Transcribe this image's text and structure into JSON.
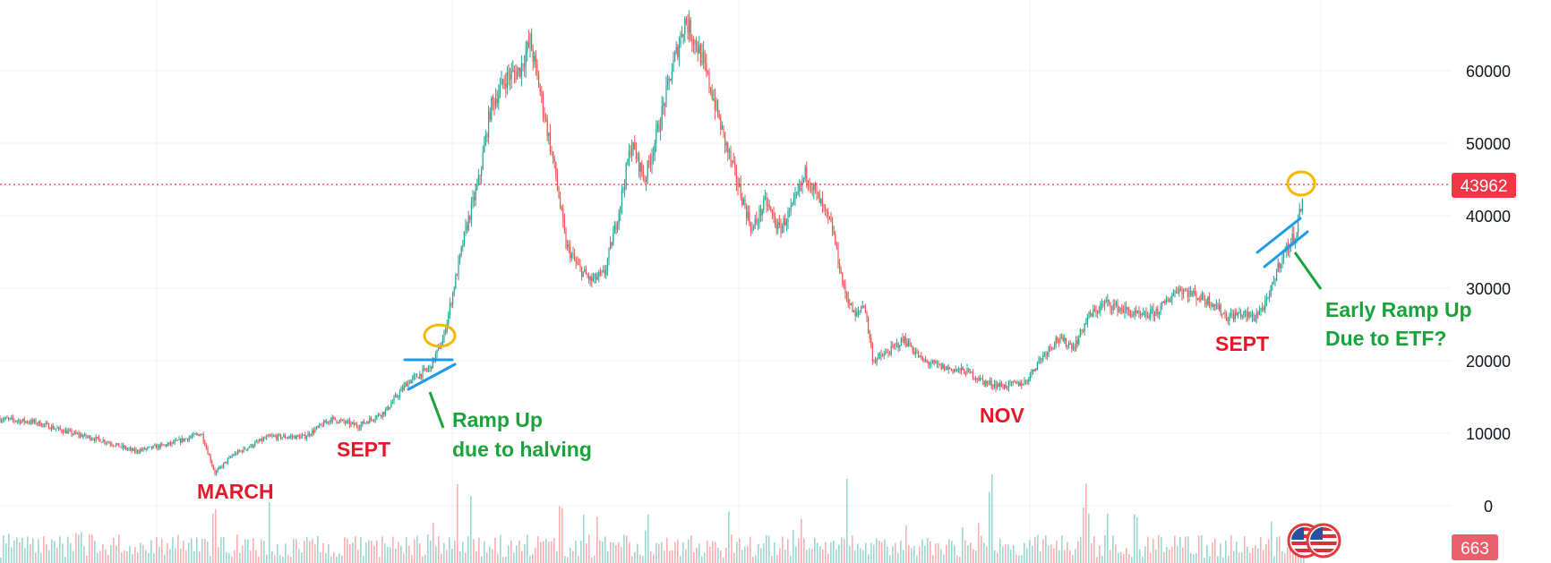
{
  "chart_data": {
    "type": "candlestick",
    "title": "",
    "xlabel": "",
    "ylabel": "",
    "ylim": [
      -6000,
      69000
    ],
    "grid": true,
    "price_axis_ticks": [
      0,
      10000,
      20000,
      30000,
      40000,
      50000,
      60000
    ],
    "price_axis_tick_labels": [
      "0",
      "10000",
      "20000",
      "30000",
      "40000",
      "50000",
      "60000"
    ],
    "current_price": 43962,
    "current_price_label": "43962",
    "current_volume_label": "663",
    "price_path": [
      [
        0,
        12000
      ],
      [
        40,
        11500
      ],
      [
        80,
        10000
      ],
      [
        115,
        9000
      ],
      [
        150,
        7500
      ],
      [
        190,
        8500
      ],
      [
        225,
        10000
      ],
      [
        240,
        4500
      ],
      [
        260,
        7000
      ],
      [
        300,
        9500
      ],
      [
        340,
        9500
      ],
      [
        370,
        12000
      ],
      [
        400,
        11000
      ],
      [
        430,
        13000
      ],
      [
        455,
        17000
      ],
      [
        480,
        19000
      ],
      [
        495,
        23000
      ],
      [
        510,
        32000
      ],
      [
        520,
        38000
      ],
      [
        535,
        45000
      ],
      [
        548,
        55000
      ],
      [
        565,
        59000
      ],
      [
        580,
        60000
      ],
      [
        592,
        64000
      ],
      [
        605,
        56000
      ],
      [
        620,
        46000
      ],
      [
        632,
        36000
      ],
      [
        645,
        33000
      ],
      [
        660,
        31000
      ],
      [
        675,
        32000
      ],
      [
        690,
        40000
      ],
      [
        705,
        50000
      ],
      [
        720,
        45000
      ],
      [
        735,
        52000
      ],
      [
        750,
        60000
      ],
      [
        765,
        67000
      ],
      [
        780,
        63000
      ],
      [
        795,
        57000
      ],
      [
        810,
        50000
      ],
      [
        825,
        44000
      ],
      [
        840,
        38000
      ],
      [
        855,
        42000
      ],
      [
        870,
        38000
      ],
      [
        885,
        41000
      ],
      [
        900,
        46000
      ],
      [
        915,
        42000
      ],
      [
        930,
        38000
      ],
      [
        942,
        30000
      ],
      [
        955,
        26000
      ],
      [
        965,
        28000
      ],
      [
        975,
        20000
      ],
      [
        990,
        21000
      ],
      [
        1010,
        23000
      ],
      [
        1030,
        20000
      ],
      [
        1055,
        19000
      ],
      [
        1080,
        18500
      ],
      [
        1100,
        17000
      ],
      [
        1120,
        16500
      ],
      [
        1145,
        17000
      ],
      [
        1160,
        20000
      ],
      [
        1180,
        23000
      ],
      [
        1200,
        22000
      ],
      [
        1215,
        26000
      ],
      [
        1235,
        28000
      ],
      [
        1255,
        27000
      ],
      [
        1275,
        26000
      ],
      [
        1295,
        27000
      ],
      [
        1315,
        30000
      ],
      [
        1335,
        29000
      ],
      [
        1355,
        28000
      ],
      [
        1370,
        26000
      ],
      [
        1385,
        26500
      ],
      [
        1400,
        26000
      ],
      [
        1415,
        28000
      ],
      [
        1430,
        34000
      ],
      [
        1440,
        36000
      ],
      [
        1448,
        38000
      ],
      [
        1455,
        43000
      ]
    ],
    "volume_spikes": [
      240,
      300,
      510,
      525,
      625,
      945,
      1105,
      1210
    ],
    "annotations": [
      {
        "text": "MARCH",
        "color": "#e3192a"
      },
      {
        "text": "SEPT",
        "color": "#e3192a"
      },
      {
        "text": "Ramp Up",
        "color": "#1aa33a"
      },
      {
        "text": "due to halving",
        "color": "#1aa33a"
      },
      {
        "text": "NOV",
        "color": "#e3192a"
      },
      {
        "text": "SEPT",
        "color": "#e3192a"
      },
      {
        "text": "Early Ramp Up",
        "color": "#1aa33a"
      },
      {
        "text": "Due to ETF?",
        "color": "#1aa33a"
      }
    ],
    "colors": {
      "up": "#26a69a",
      "down": "#ef5350",
      "grid": "#eef0f3",
      "price_line": "#e03a3a",
      "price_tag_bg": "#f23645",
      "volume_tag_bg": "#e8606b",
      "annotation_red": "#e3192a",
      "annotation_green": "#1aa33a",
      "trendline": "#1e9be8",
      "circle": "#f5b800"
    }
  },
  "icons": [
    {
      "name": "us-flag-icon"
    },
    {
      "name": "us-flag-icon"
    }
  ]
}
